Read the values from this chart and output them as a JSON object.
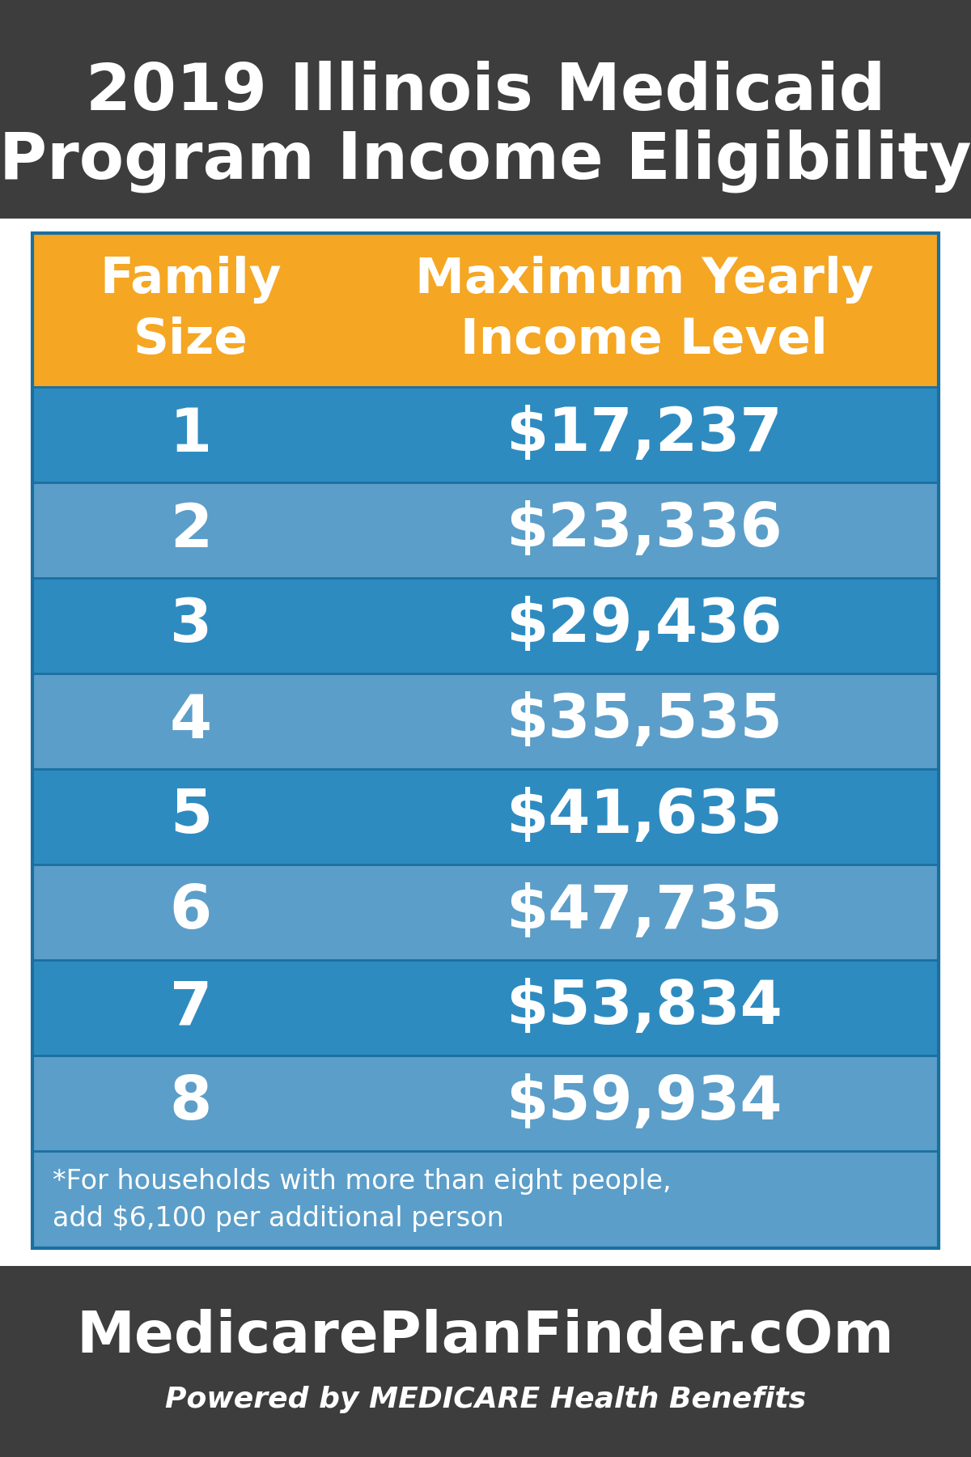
{
  "title_line1": "2019 Illinois Medicaid",
  "title_line2": "Program Income Eligibility",
  "title_bg_color": "#3d3d3d",
  "title_text_color": "#ffffff",
  "header_col1": "Family\nSize",
  "header_col2": "Maximum Yearly\nIncome Level",
  "header_bg_color": "#f5a623",
  "header_text_color": "#ffffff",
  "rows": [
    [
      "1",
      "$17,237"
    ],
    [
      "2",
      "$23,336"
    ],
    [
      "3",
      "$29,436"
    ],
    [
      "4",
      "$35,535"
    ],
    [
      "5",
      "$41,635"
    ],
    [
      "6",
      "$47,735"
    ],
    [
      "7",
      "$53,834"
    ],
    [
      "8",
      "$59,934"
    ]
  ],
  "row_colors_alt": [
    "#2e8bc0",
    "#5b9ec9"
  ],
  "row_text_color": "#ffffff",
  "footnote": "*For households with more than eight people,\nadd $6,100 per additional person",
  "footnote_bg_color": "#5b9ec9",
  "footnote_text_color": "#ffffff",
  "footer_bg_color": "#3d3d3d",
  "footer_text_color": "#ffffff",
  "footer_main": "MedicarePlanFinder.cOm",
  "footer_sub": "Powered by MEDICARE Health Benefits",
  "outer_bg_color": "#ffffff",
  "separator_color": "#1a6fa0"
}
